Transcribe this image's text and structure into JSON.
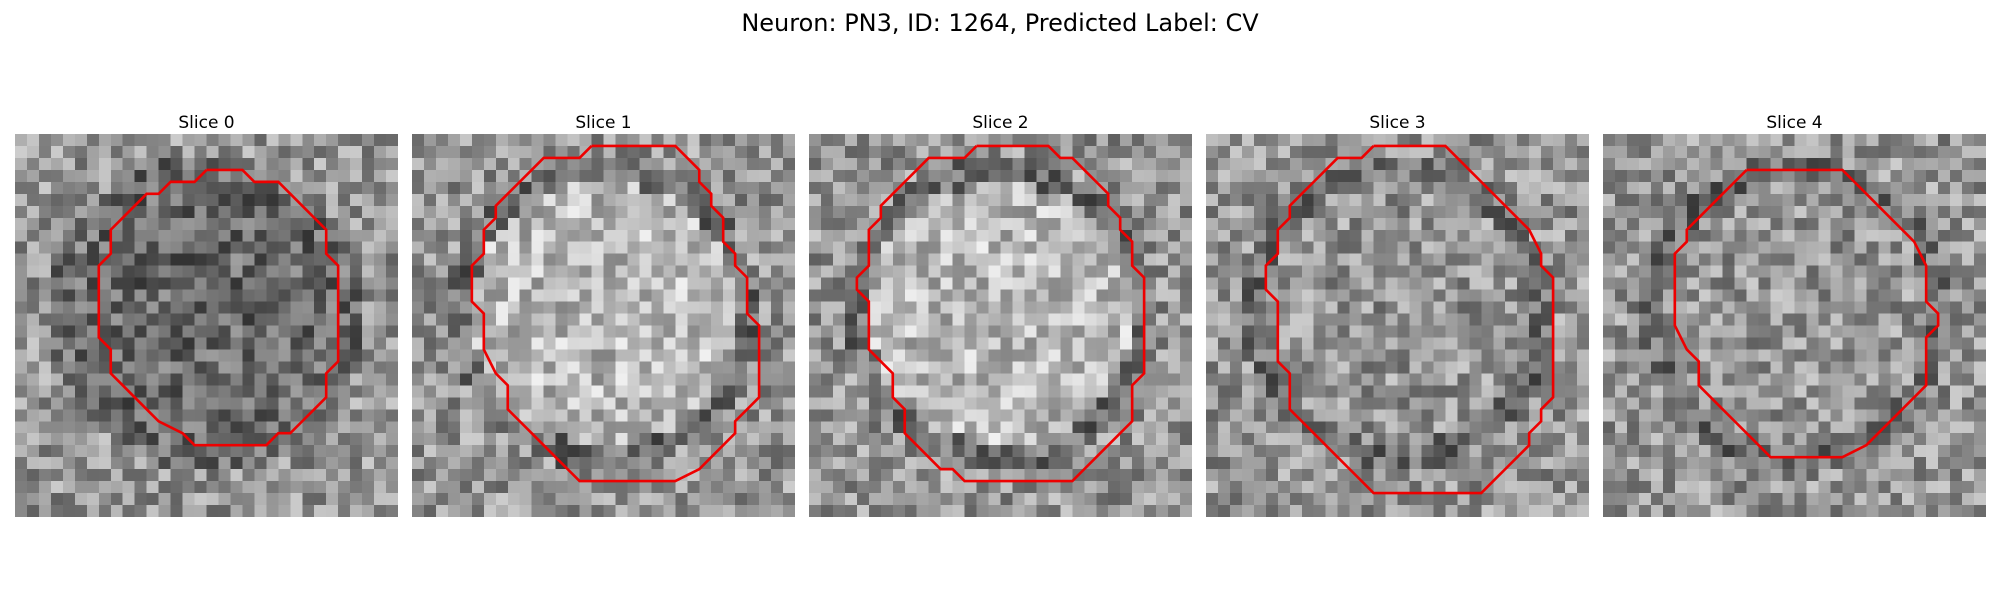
{
  "figure": {
    "title": "Neuron: PN3, ID: 1264, Predicted Label: CV",
    "contour_color": "#ee0000"
  },
  "slices": [
    {
      "title": "Slice 0",
      "interior_tone": "dark"
    },
    {
      "title": "Slice 1",
      "interior_tone": "light"
    },
    {
      "title": "Slice 2",
      "interior_tone": "light"
    },
    {
      "title": "Slice 3",
      "interior_tone": "medium"
    },
    {
      "title": "Slice 4",
      "interior_tone": "medium"
    }
  ]
}
